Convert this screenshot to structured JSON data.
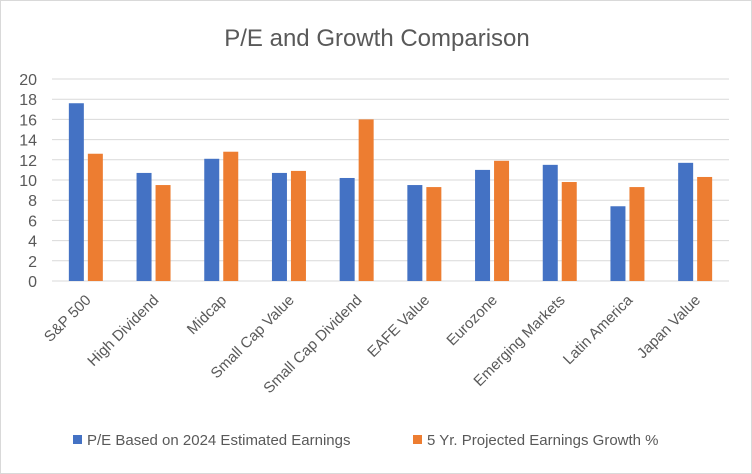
{
  "chart_data": {
    "type": "bar",
    "title": "P/E and Growth Comparison",
    "categories": [
      "S&P 500",
      "High Dividend",
      "Midcap",
      "Small Cap Value",
      "Small Cap Dividend",
      "EAFE Value",
      "Eurozone",
      "Emerging Markets",
      "Latin America",
      "Japan Value"
    ],
    "series": [
      {
        "name": "P/E Based on 2024 Estimated Earnings",
        "color": "#4472C4",
        "values": [
          17.6,
          10.7,
          12.1,
          10.7,
          10.2,
          9.5,
          11.0,
          11.5,
          7.4,
          11.7
        ]
      },
      {
        "name": "5 Yr. Projected Earnings Growth %",
        "color": "#ED7D31",
        "values": [
          12.6,
          9.5,
          12.8,
          10.9,
          16.0,
          9.3,
          11.9,
          9.8,
          9.3,
          10.3
        ]
      }
    ],
    "ylim": [
      0,
      20
    ],
    "yticks": [
      0,
      2,
      4,
      6,
      8,
      10,
      12,
      14,
      16,
      18,
      20
    ],
    "grid": true,
    "legend": "bottom"
  }
}
